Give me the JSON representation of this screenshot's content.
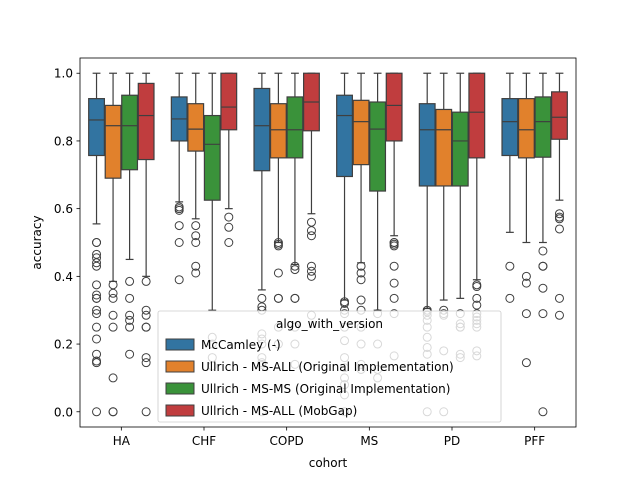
{
  "chart_data": {
    "type": "box",
    "xlabel": "cohort",
    "ylabel": "accuracy",
    "ylim": [
      -0.045,
      1.045
    ],
    "yticks": [
      0.0,
      0.2,
      0.4,
      0.6,
      0.8,
      1.0
    ],
    "ytick_labels": [
      "0.0",
      "0.2",
      "0.4",
      "0.6",
      "0.8",
      "1.0"
    ],
    "grid": false,
    "categories": [
      "HA",
      "CHF",
      "COPD",
      "MS",
      "PD",
      "PFF"
    ],
    "legend": {
      "title": "algo_with_version",
      "placement": "lower center"
    },
    "series": [
      {
        "name": "McCamley (-)",
        "color": "#3274a1",
        "boxes": [
          {
            "whislo": 0.555,
            "q1": 0.757,
            "med": 0.862,
            "q3": 0.925,
            "whishi": 1.0,
            "fliers": [
              0.5,
              0.5,
              0.465,
              0.455,
              0.44,
              0.43,
              0.375,
              0.345,
              0.335,
              0.335,
              0.3,
              0.29,
              0.25,
              0.215,
              0.17,
              0.15,
              0.145,
              0.0
            ]
          },
          {
            "whislo": 0.62,
            "q1": 0.8,
            "med": 0.865,
            "q3": 0.93,
            "whishi": 1.0,
            "fliers": [
              0.605,
              0.6,
              0.595,
              0.55,
              0.5,
              0.39
            ]
          },
          {
            "whislo": 0.36,
            "q1": 0.712,
            "med": 0.845,
            "q3": 0.955,
            "whishi": 1.0,
            "fliers": [
              0.335,
              0.31,
              0.3,
              0.23,
              0.215,
              0.2,
              0.16,
              0.145,
              0.14,
              0.0
            ]
          },
          {
            "whislo": 0.33,
            "q1": 0.695,
            "med": 0.875,
            "q3": 0.935,
            "whishi": 1.0,
            "fliers": [
              0.325,
              0.32,
              0.3,
              0.29,
              0.25,
              0.21,
              0.16,
              0.13,
              0.1,
              0.08,
              0.05,
              0.0
            ]
          },
          {
            "whislo": 0.305,
            "q1": 0.667,
            "med": 0.833,
            "q3": 0.91,
            "whishi": 1.0,
            "fliers": [
              0.3,
              0.295,
              0.285,
              0.27,
              0.25,
              0.22,
              0.19,
              0.17,
              0.0
            ]
          },
          {
            "whislo": 0.53,
            "q1": 0.757,
            "med": 0.857,
            "q3": 0.925,
            "whishi": 1.0,
            "fliers": [
              0.43,
              0.335
            ]
          }
        ]
      },
      {
        "name": "Ullrich - MS-ALL (Original Implementation)",
        "color": "#e1812c",
        "boxes": [
          {
            "whislo": 0.385,
            "q1": 0.69,
            "med": 0.845,
            "q3": 0.905,
            "whishi": 1.0,
            "fliers": [
              0.375,
              0.35,
              0.335,
              0.285,
              0.25,
              0.1,
              0.0,
              0.0
            ]
          },
          {
            "whislo": 0.57,
            "q1": 0.77,
            "med": 0.835,
            "q3": 0.91,
            "whishi": 1.0,
            "fliers": [
              0.55,
              0.52,
              0.5,
              0.43,
              0.41
            ]
          },
          {
            "whislo": 0.5,
            "q1": 0.75,
            "med": 0.833,
            "q3": 0.91,
            "whishi": 1.0,
            "fliers": [
              0.5,
              0.495,
              0.49,
              0.41,
              0.335,
              0.335,
              0.25,
              0.2
            ]
          },
          {
            "whislo": 0.44,
            "q1": 0.73,
            "med": 0.857,
            "q3": 0.92,
            "whishi": 1.0,
            "fliers": [
              0.43,
              0.41,
              0.39,
              0.33,
              0.3,
              0.25,
              0.2,
              0.14,
              0.125
            ]
          },
          {
            "whislo": 0.33,
            "q1": 0.667,
            "med": 0.833,
            "q3": 0.893,
            "whishi": 1.0,
            "fliers": [
              0.3,
              0.29,
              0.285,
              0.18,
              0.0
            ]
          },
          {
            "whislo": 0.5,
            "q1": 0.75,
            "med": 0.833,
            "q3": 0.925,
            "whishi": 1.0,
            "fliers": [
              0.4,
              0.38,
              0.29,
              0.145
            ]
          }
        ]
      },
      {
        "name": "Ullrich - MS-MS (Original Implementation)",
        "color": "#3a923a",
        "boxes": [
          {
            "whislo": 0.45,
            "q1": 0.715,
            "med": 0.845,
            "q3": 0.935,
            "whishi": 1.0,
            "fliers": [
              0.385,
              0.335,
              0.285,
              0.27,
              0.25,
              0.17
            ]
          },
          {
            "whislo": 0.3,
            "q1": 0.625,
            "med": 0.79,
            "q3": 0.875,
            "whishi": 1.0,
            "fliers": [
              0.22,
              0.2,
              0.16,
              0.135
            ]
          },
          {
            "whislo": 0.435,
            "q1": 0.75,
            "med": 0.833,
            "q3": 0.93,
            "whishi": 1.0,
            "fliers": [
              0.43,
              0.42,
              0.335,
              0.335,
              0.25,
              0.2,
              0.14
            ]
          },
          {
            "whislo": 0.3,
            "q1": 0.652,
            "med": 0.835,
            "q3": 0.915,
            "whishi": 1.0,
            "fliers": [
              0.29,
              0.2,
              0.125,
              0.1
            ]
          },
          {
            "whislo": 0.335,
            "q1": 0.667,
            "med": 0.8,
            "q3": 0.885,
            "whishi": 1.0,
            "fliers": [
              0.29,
              0.26,
              0.25,
              0.25,
              0.17,
              0.16
            ]
          },
          {
            "whislo": 0.5,
            "q1": 0.752,
            "med": 0.857,
            "q3": 0.93,
            "whishi": 1.0,
            "fliers": [
              0.475,
              0.43,
              0.43,
              0.365,
              0.29,
              0.0
            ]
          }
        ]
      },
      {
        "name": "Ullrich - MS-ALL (MobGap)",
        "color": "#c03d3e",
        "boxes": [
          {
            "whislo": 0.4,
            "q1": 0.745,
            "med": 0.875,
            "q3": 0.97,
            "whishi": 1.0,
            "fliers": [
              0.385,
              0.3,
              0.285,
              0.25,
              0.25,
              0.16,
              0.145,
              0.0
            ]
          },
          {
            "whislo": 0.6,
            "q1": 0.833,
            "med": 0.9,
            "q3": 1.0,
            "whishi": 1.0,
            "fliers": [
              0.575,
              0.545,
              0.5
            ]
          },
          {
            "whislo": 0.585,
            "q1": 0.83,
            "med": 0.915,
            "q3": 1.0,
            "whishi": 1.0,
            "fliers": [
              0.56,
              0.535,
              0.52,
              0.43,
              0.415,
              0.4,
              0.285
            ]
          },
          {
            "whislo": 0.52,
            "q1": 0.8,
            "med": 0.905,
            "q3": 1.0,
            "whishi": 1.0,
            "fliers": [
              0.5,
              0.5,
              0.495,
              0.49,
              0.43,
              0.38,
              0.335,
              0.29,
              0.165
            ]
          },
          {
            "whislo": 0.39,
            "q1": 0.75,
            "med": 0.885,
            "q3": 1.0,
            "whishi": 1.0,
            "fliers": [
              0.375,
              0.37,
              0.335,
              0.315,
              0.29,
              0.28,
              0.27,
              0.26,
              0.25,
              0.18,
              0.165
            ]
          },
          {
            "whislo": 0.625,
            "q1": 0.805,
            "med": 0.87,
            "q3": 0.945,
            "whishi": 1.0,
            "fliers": [
              0.585,
              0.575,
              0.57,
              0.54,
              0.335,
              0.285
            ]
          }
        ]
      }
    ]
  }
}
